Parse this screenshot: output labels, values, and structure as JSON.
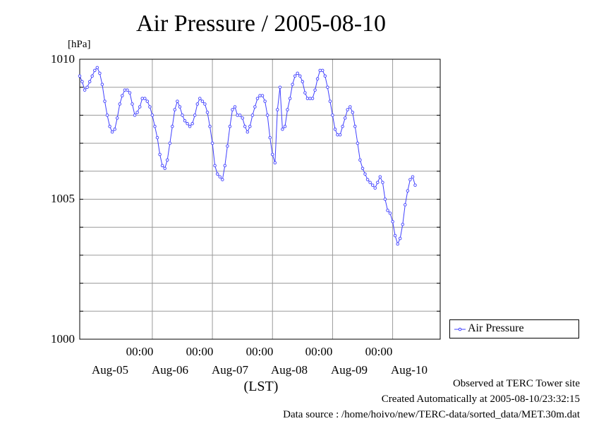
{
  "chart_data": {
    "type": "line",
    "title": "Air Pressure / 2005-08-10",
    "ylabel": "[hPa]",
    "xlabel": "(LST)",
    "ylim": [
      1000,
      1010
    ],
    "xlim": [
      -5,
      139
    ],
    "grid": true,
    "legend_position": "right",
    "y_ticks": [
      "1010",
      "1005",
      "1000"
    ],
    "x_time_ticks": [
      "00:00",
      "00:00",
      "00:00",
      "00:00",
      "00:00"
    ],
    "x_date_labels": [
      "Aug-05",
      "Aug-06",
      "Aug-07",
      "Aug-08",
      "Aug-09",
      "Aug-10"
    ],
    "x_unit": "hours from 2005-08-05 00:00 LST",
    "series": [
      {
        "name": "Air Pressure",
        "color": "#4040ff",
        "points": [
          [
            -5,
            1009.4
          ],
          [
            -4,
            1009.2
          ],
          [
            -3,
            1008.9
          ],
          [
            -2,
            1009.0
          ],
          [
            -1,
            1009.2
          ],
          [
            0,
            1009.4
          ],
          [
            1,
            1009.6
          ],
          [
            2,
            1009.7
          ],
          [
            3,
            1009.5
          ],
          [
            4,
            1009.1
          ],
          [
            5,
            1008.5
          ],
          [
            6,
            1008.0
          ],
          [
            7,
            1007.6
          ],
          [
            8,
            1007.4
          ],
          [
            9,
            1007.5
          ],
          [
            10,
            1007.9
          ],
          [
            11,
            1008.4
          ],
          [
            12,
            1008.7
          ],
          [
            13,
            1008.9
          ],
          [
            14,
            1008.9
          ],
          [
            15,
            1008.8
          ],
          [
            16,
            1008.4
          ],
          [
            17,
            1008.0
          ],
          [
            18,
            1008.1
          ],
          [
            19,
            1008.3
          ],
          [
            20,
            1008.6
          ],
          [
            21,
            1008.6
          ],
          [
            22,
            1008.5
          ],
          [
            23,
            1008.3
          ],
          [
            24,
            1008.0
          ],
          [
            25,
            1007.6
          ],
          [
            26,
            1007.2
          ],
          [
            27,
            1006.6
          ],
          [
            28,
            1006.2
          ],
          [
            29,
            1006.1
          ],
          [
            30,
            1006.4
          ],
          [
            31,
            1007.0
          ],
          [
            32,
            1007.6
          ],
          [
            33,
            1008.2
          ],
          [
            34,
            1008.5
          ],
          [
            35,
            1008.3
          ],
          [
            36,
            1008.0
          ],
          [
            37,
            1007.8
          ],
          [
            38,
            1007.7
          ],
          [
            39,
            1007.6
          ],
          [
            40,
            1007.7
          ],
          [
            41,
            1008.0
          ],
          [
            42,
            1008.4
          ],
          [
            43,
            1008.6
          ],
          [
            44,
            1008.5
          ],
          [
            45,
            1008.4
          ],
          [
            46,
            1008.1
          ],
          [
            47,
            1007.6
          ],
          [
            48,
            1007.0
          ],
          [
            49,
            1006.2
          ],
          [
            50,
            1005.9
          ],
          [
            51,
            1005.8
          ],
          [
            52,
            1005.7
          ],
          [
            53,
            1006.2
          ],
          [
            54,
            1006.9
          ],
          [
            55,
            1007.6
          ],
          [
            56,
            1008.2
          ],
          [
            57,
            1008.3
          ],
          [
            58,
            1008.0
          ],
          [
            59,
            1008.0
          ],
          [
            60,
            1007.9
          ],
          [
            61,
            1007.6
          ],
          [
            62,
            1007.4
          ],
          [
            63,
            1007.6
          ],
          [
            64,
            1008.0
          ],
          [
            65,
            1008.3
          ],
          [
            66,
            1008.6
          ],
          [
            67,
            1008.7
          ],
          [
            68,
            1008.7
          ],
          [
            69,
            1008.5
          ],
          [
            70,
            1008.0
          ],
          [
            71,
            1007.2
          ],
          [
            72,
            1006.6
          ],
          [
            73,
            1006.3
          ],
          [
            74,
            1008.2
          ],
          [
            75,
            1009.0
          ],
          [
            76,
            1007.5
          ],
          [
            77,
            1007.6
          ],
          [
            78,
            1008.2
          ],
          [
            79,
            1008.6
          ],
          [
            80,
            1009.1
          ],
          [
            81,
            1009.4
          ],
          [
            82,
            1009.5
          ],
          [
            83,
            1009.4
          ],
          [
            84,
            1009.2
          ],
          [
            85,
            1008.8
          ],
          [
            86,
            1008.6
          ],
          [
            87,
            1008.6
          ],
          [
            88,
            1008.6
          ],
          [
            89,
            1008.9
          ],
          [
            90,
            1009.3
          ],
          [
            91,
            1009.6
          ],
          [
            92,
            1009.6
          ],
          [
            93,
            1009.4
          ],
          [
            94,
            1009.0
          ],
          [
            95,
            1008.5
          ],
          [
            96,
            1008.0
          ],
          [
            97,
            1007.5
          ],
          [
            98,
            1007.3
          ],
          [
            99,
            1007.3
          ],
          [
            100,
            1007.6
          ],
          [
            101,
            1007.9
          ],
          [
            102,
            1008.2
          ],
          [
            103,
            1008.3
          ],
          [
            104,
            1008.1
          ],
          [
            105,
            1007.6
          ],
          [
            106,
            1007.0
          ],
          [
            107,
            1006.4
          ],
          [
            108,
            1006.1
          ],
          [
            109,
            1005.9
          ],
          [
            110,
            1005.7
          ],
          [
            111,
            1005.6
          ],
          [
            112,
            1005.5
          ],
          [
            113,
            1005.4
          ],
          [
            114,
            1005.6
          ],
          [
            115,
            1005.8
          ],
          [
            116,
            1005.6
          ],
          [
            117,
            1005.0
          ],
          [
            118,
            1004.6
          ],
          [
            119,
            1004.5
          ],
          [
            120,
            1004.2
          ],
          [
            121,
            1003.7
          ],
          [
            122,
            1003.4
          ],
          [
            123,
            1003.6
          ],
          [
            124,
            1004.1
          ],
          [
            125,
            1004.8
          ],
          [
            126,
            1005.3
          ],
          [
            127,
            1005.7
          ],
          [
            128,
            1005.8
          ],
          [
            129,
            1005.5
          ]
        ]
      }
    ]
  },
  "footer": {
    "observed": "Observed at TERC Tower site",
    "created": "Created Automatically at 2005-08-10/23:32:15",
    "source": "Data source : /home/hoivo/new/TERC-data/sorted_data/MET.30m.dat"
  }
}
